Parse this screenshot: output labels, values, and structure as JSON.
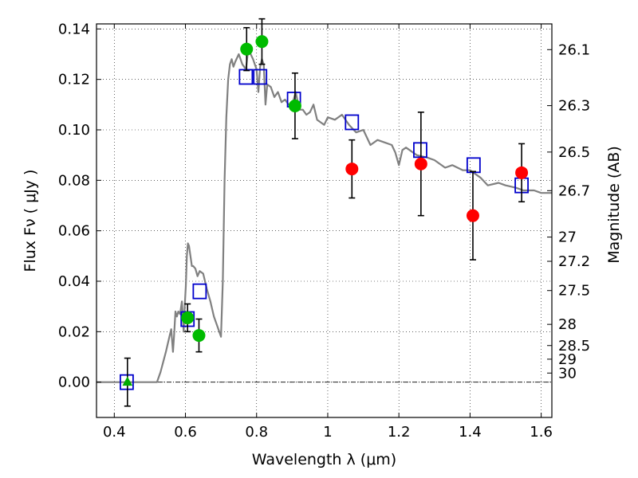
{
  "chart_data": {
    "type": "scatter",
    "xlabel": "Wavelength  λ (μm)",
    "ylabel": "Flux  Fν  ( μJy )",
    "ylabel_right": "Magnitude (AB)",
    "xlim": [
      0.35,
      1.63
    ],
    "ylim": [
      -0.014,
      0.142
    ],
    "grid": true,
    "x_ticks": [
      0.4,
      0.6,
      0.8,
      1.0,
      1.2,
      1.4,
      1.6
    ],
    "x_tick_labels": [
      "0.4",
      "0.6",
      "0.8",
      "1",
      "1.2",
      "1.4",
      "1.6"
    ],
    "y_ticks": [
      0.0,
      0.02,
      0.04,
      0.06,
      0.08,
      0.1,
      0.12,
      0.14
    ],
    "y_tick_labels": [
      "0.00",
      "0.02",
      "0.04",
      "0.06",
      "0.08",
      "0.10",
      "0.12",
      "0.14"
    ],
    "right_ticks": [
      {
        "label": "26.1",
        "flux": 0.1318
      },
      {
        "label": "26.3",
        "flux": 0.1096
      },
      {
        "label": "26.5",
        "flux": 0.0912
      },
      {
        "label": "26.7",
        "flux": 0.0759
      },
      {
        "label": "27",
        "flux": 0.0575
      },
      {
        "label": "27.2",
        "flux": 0.0479
      },
      {
        "label": "27.5",
        "flux": 0.0363
      },
      {
        "label": "28",
        "flux": 0.0229
      },
      {
        "label": "28.5",
        "flux": 0.0145
      },
      {
        "label": "29",
        "flux": 0.0091
      },
      {
        "label": "30",
        "flux": 0.0036
      }
    ],
    "series": [
      {
        "kind": "line",
        "color": "#808080",
        "x": [
          0.35,
          0.52,
          0.53,
          0.545,
          0.555,
          0.56,
          0.565,
          0.568,
          0.572,
          0.576,
          0.58,
          0.585,
          0.59,
          0.595,
          0.598,
          0.601,
          0.604,
          0.607,
          0.61,
          0.614,
          0.618,
          0.622,
          0.628,
          0.634,
          0.64,
          0.65,
          0.66,
          0.67,
          0.68,
          0.69,
          0.695,
          0.7,
          0.705,
          0.71,
          0.715,
          0.72,
          0.725,
          0.73,
          0.735,
          0.74,
          0.75,
          0.76,
          0.77,
          0.775,
          0.78,
          0.79,
          0.8,
          0.805,
          0.81,
          0.815,
          0.82,
          0.825,
          0.83,
          0.84,
          0.85,
          0.86,
          0.87,
          0.88,
          0.89,
          0.9,
          0.91,
          0.92,
          0.93,
          0.94,
          0.95,
          0.96,
          0.97,
          0.98,
          0.99,
          1.0,
          1.02,
          1.04,
          1.06,
          1.08,
          1.1,
          1.12,
          1.14,
          1.16,
          1.18,
          1.19,
          1.2,
          1.21,
          1.22,
          1.25,
          1.28,
          1.3,
          1.33,
          1.35,
          1.38,
          1.4,
          1.43,
          1.45,
          1.48,
          1.5,
          1.53,
          1.55,
          1.58,
          1.6,
          1.63
        ],
        "y": [
          0.0,
          0.0,
          0.004,
          0.012,
          0.018,
          0.021,
          0.012,
          0.018,
          0.028,
          0.026,
          0.028,
          0.027,
          0.032,
          0.02,
          0.03,
          0.038,
          0.05,
          0.055,
          0.054,
          0.05,
          0.046,
          0.046,
          0.045,
          0.042,
          0.044,
          0.043,
          0.037,
          0.032,
          0.026,
          0.022,
          0.02,
          0.018,
          0.04,
          0.08,
          0.105,
          0.12,
          0.126,
          0.128,
          0.125,
          0.127,
          0.13,
          0.126,
          0.124,
          0.13,
          0.131,
          0.128,
          0.124,
          0.115,
          0.125,
          0.128,
          0.126,
          0.11,
          0.118,
          0.117,
          0.113,
          0.115,
          0.111,
          0.112,
          0.11,
          0.11,
          0.115,
          0.108,
          0.108,
          0.106,
          0.107,
          0.11,
          0.104,
          0.103,
          0.102,
          0.105,
          0.104,
          0.106,
          0.102,
          0.099,
          0.1,
          0.094,
          0.096,
          0.095,
          0.094,
          0.091,
          0.086,
          0.092,
          0.093,
          0.09,
          0.089,
          0.088,
          0.085,
          0.086,
          0.084,
          0.084,
          0.081,
          0.078,
          0.079,
          0.078,
          0.077,
          0.076,
          0.076,
          0.075,
          0.075
        ]
      },
      {
        "kind": "square",
        "color": "#0000cc",
        "x": [
          0.435,
          0.606,
          0.64,
          0.77,
          0.81,
          0.905,
          1.068,
          1.26,
          1.41,
          1.545
        ],
        "y": [
          0.0,
          0.025,
          0.036,
          0.121,
          0.121,
          0.112,
          0.103,
          0.092,
          0.086,
          0.078
        ]
      },
      {
        "kind": "circle",
        "color": "#00bb00",
        "x": [
          0.606,
          0.638,
          0.772,
          0.815,
          0.908
        ],
        "y": [
          0.0255,
          0.0185,
          0.132,
          0.135,
          0.1095
        ],
        "yerr": [
          0.0055,
          0.0065,
          0.0085,
          0.009,
          0.013
        ]
      },
      {
        "kind": "circle",
        "color": "#ff0000",
        "x": [
          1.068,
          1.262,
          1.408,
          1.545
        ],
        "y": [
          0.0845,
          0.0865,
          0.066,
          0.083
        ],
        "yerr": [
          0.0115,
          0.0205,
          0.0175,
          0.0115
        ]
      },
      {
        "kind": "triangle",
        "color": "#00aa00",
        "x": [
          0.437
        ],
        "y": [
          0.0
        ],
        "yerr": [
          0.0095
        ]
      }
    ]
  }
}
